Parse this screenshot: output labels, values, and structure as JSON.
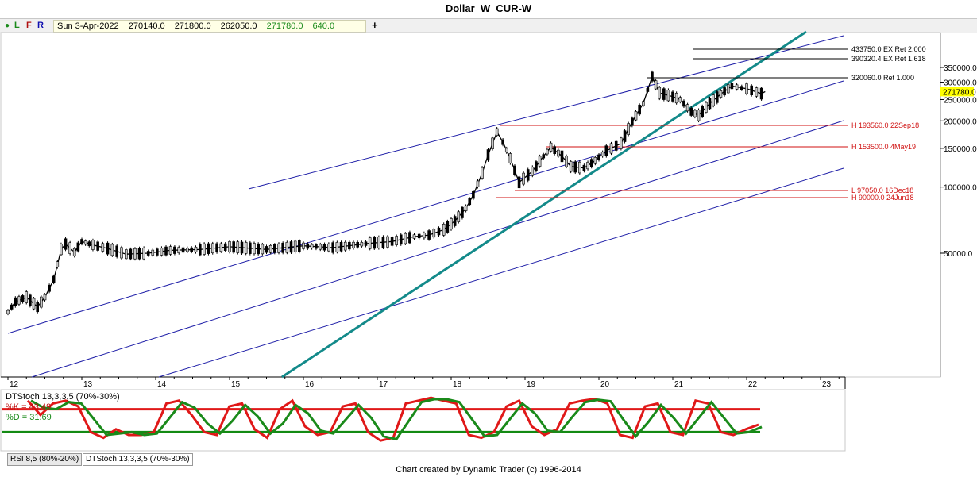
{
  "title": "Dollar_W_CUR-W",
  "toolbar": {
    "buttons": [
      "L",
      "F",
      "R"
    ],
    "date": "Sun 3-Apr-2022",
    "open": "270140.0",
    "high": "271800.0",
    "low": "262050.0",
    "close": "271780.0",
    "change": "640.0",
    "add_label": "+"
  },
  "price_axis": {
    "ticks": [
      "350000.0",
      "300000.0",
      "250000.0",
      "200000.0",
      "150000.0",
      "100000.0",
      "50000.0"
    ],
    "last_price": "271780.0"
  },
  "time_axis": {
    "labels": [
      "12",
      "13",
      "14",
      "15",
      "16",
      "17",
      "18",
      "19",
      "20",
      "21",
      "22",
      "23"
    ]
  },
  "annotations": {
    "black": [
      "433750.0 EX Ret 2.000",
      "390320.4 EX Ret 1.618",
      "320060.0 Ret 1.000"
    ],
    "red": [
      "H 193560.0 22Sep18",
      "H 153500.0 4May19",
      "L 97050.0 16Dec18",
      "H 90000.0 24Jun18"
    ]
  },
  "indicator": {
    "name": "DTStoch 13,3,3,5 (70%-30%)",
    "k_label": "%K = 43.49",
    "d_label": "%D = 31.69"
  },
  "tabs": [
    "RSI 8,5 (80%-20%)",
    "DTStoch 13,3,3,5 (70%-30%)"
  ],
  "credit": "Chart created by Dynamic Trader  (c) 1996-2014",
  "colors": {
    "channel": "#1f1fa8",
    "trend": "#138a8a",
    "level_red": "#d01010",
    "stoch_k": "#e01818",
    "stoch_d": "#1a8a1a",
    "osc_top": "#e01818",
    "osc_bottom": "#138a13"
  },
  "chart_data": {
    "type": "candlestick",
    "title": "Dollar_W_CUR-W",
    "scale": "log",
    "y_range": [
      25000,
      390000
    ],
    "x_range": [
      2012,
      2023
    ],
    "series": [
      {
        "name": "price",
        "points": [
          [
            2012.0,
            27000
          ],
          [
            2012.1,
            30000
          ],
          [
            2012.25,
            31500
          ],
          [
            2012.4,
            28500
          ],
          [
            2012.5,
            31500
          ],
          [
            2012.62,
            38000
          ],
          [
            2012.72,
            52000
          ],
          [
            2012.78,
            55000
          ],
          [
            2012.9,
            50500
          ],
          [
            2013.0,
            56500
          ],
          [
            2013.15,
            54500
          ],
          [
            2013.35,
            52500
          ],
          [
            2013.6,
            49500
          ],
          [
            2013.9,
            50000
          ],
          [
            2014.2,
            51500
          ],
          [
            2014.6,
            52000
          ],
          [
            2015.0,
            53500
          ],
          [
            2015.5,
            52000
          ],
          [
            2016.0,
            54000
          ],
          [
            2016.4,
            53000
          ],
          [
            2016.9,
            55500
          ],
          [
            2017.2,
            56500
          ],
          [
            2017.5,
            59500
          ],
          [
            2017.7,
            60500
          ],
          [
            2017.9,
            64000
          ],
          [
            2018.05,
            70000
          ],
          [
            2018.2,
            80000
          ],
          [
            2018.3,
            92000
          ],
          [
            2018.42,
            116000
          ],
          [
            2018.5,
            140000
          ],
          [
            2018.62,
            178000
          ],
          [
            2018.7,
            160000
          ],
          [
            2018.8,
            135000
          ],
          [
            2018.92,
            105000
          ],
          [
            2019.1,
            118000
          ],
          [
            2019.25,
            138000
          ],
          [
            2019.35,
            152000
          ],
          [
            2019.5,
            138000
          ],
          [
            2019.62,
            124000
          ],
          [
            2019.8,
            122000
          ],
          [
            2019.95,
            132000
          ],
          [
            2020.1,
            146000
          ],
          [
            2020.3,
            158000
          ],
          [
            2020.45,
            198000
          ],
          [
            2020.6,
            240000
          ],
          [
            2020.72,
            318000
          ],
          [
            2020.82,
            268000
          ],
          [
            2021.0,
            258000
          ],
          [
            2021.1,
            250000
          ],
          [
            2021.25,
            220000
          ],
          [
            2021.35,
            212000
          ],
          [
            2021.5,
            240000
          ],
          [
            2021.65,
            265000
          ],
          [
            2021.8,
            288000
          ],
          [
            2022.0,
            280000
          ],
          [
            2022.2,
            266000
          ],
          [
            2022.25,
            271780
          ]
        ]
      }
    ],
    "levels": [
      {
        "value": 433750.0,
        "label": "433750.0 EX Ret 2.000"
      },
      {
        "value": 390320.4,
        "label": "390320.4 EX Ret 1.618"
      },
      {
        "value": 320060.0,
        "label": "320060.0 Ret 1.000"
      },
      {
        "value": 193560.0,
        "label": "H 193560.0 22Sep18"
      },
      {
        "value": 153500.0,
        "label": "H 153500.0 4May19"
      },
      {
        "value": 97050.0,
        "label": "L 97050.0 16Dec18"
      },
      {
        "value": 90000.0,
        "label": "H 90000.0 24Jun18"
      }
    ],
    "indicator": {
      "name": "DTStoch 13,3,3,5 (70%-30%)",
      "k": 43.49,
      "d": 31.69,
      "overbought": 70,
      "oversold": 30,
      "k_values": [
        85,
        60,
        80,
        85,
        75,
        30,
        20,
        35,
        25,
        25,
        30,
        80,
        85,
        60,
        30,
        25,
        75,
        80,
        35,
        20,
        70,
        85,
        40,
        25,
        30,
        75,
        80,
        30,
        15,
        20,
        80,
        85,
        90,
        85,
        80,
        25,
        20,
        30,
        75,
        85,
        40,
        25,
        35,
        80,
        85,
        88,
        80,
        25,
        20,
        75,
        80,
        30,
        25,
        85,
        80,
        30,
        25,
        35,
        43
      ]
    }
  }
}
